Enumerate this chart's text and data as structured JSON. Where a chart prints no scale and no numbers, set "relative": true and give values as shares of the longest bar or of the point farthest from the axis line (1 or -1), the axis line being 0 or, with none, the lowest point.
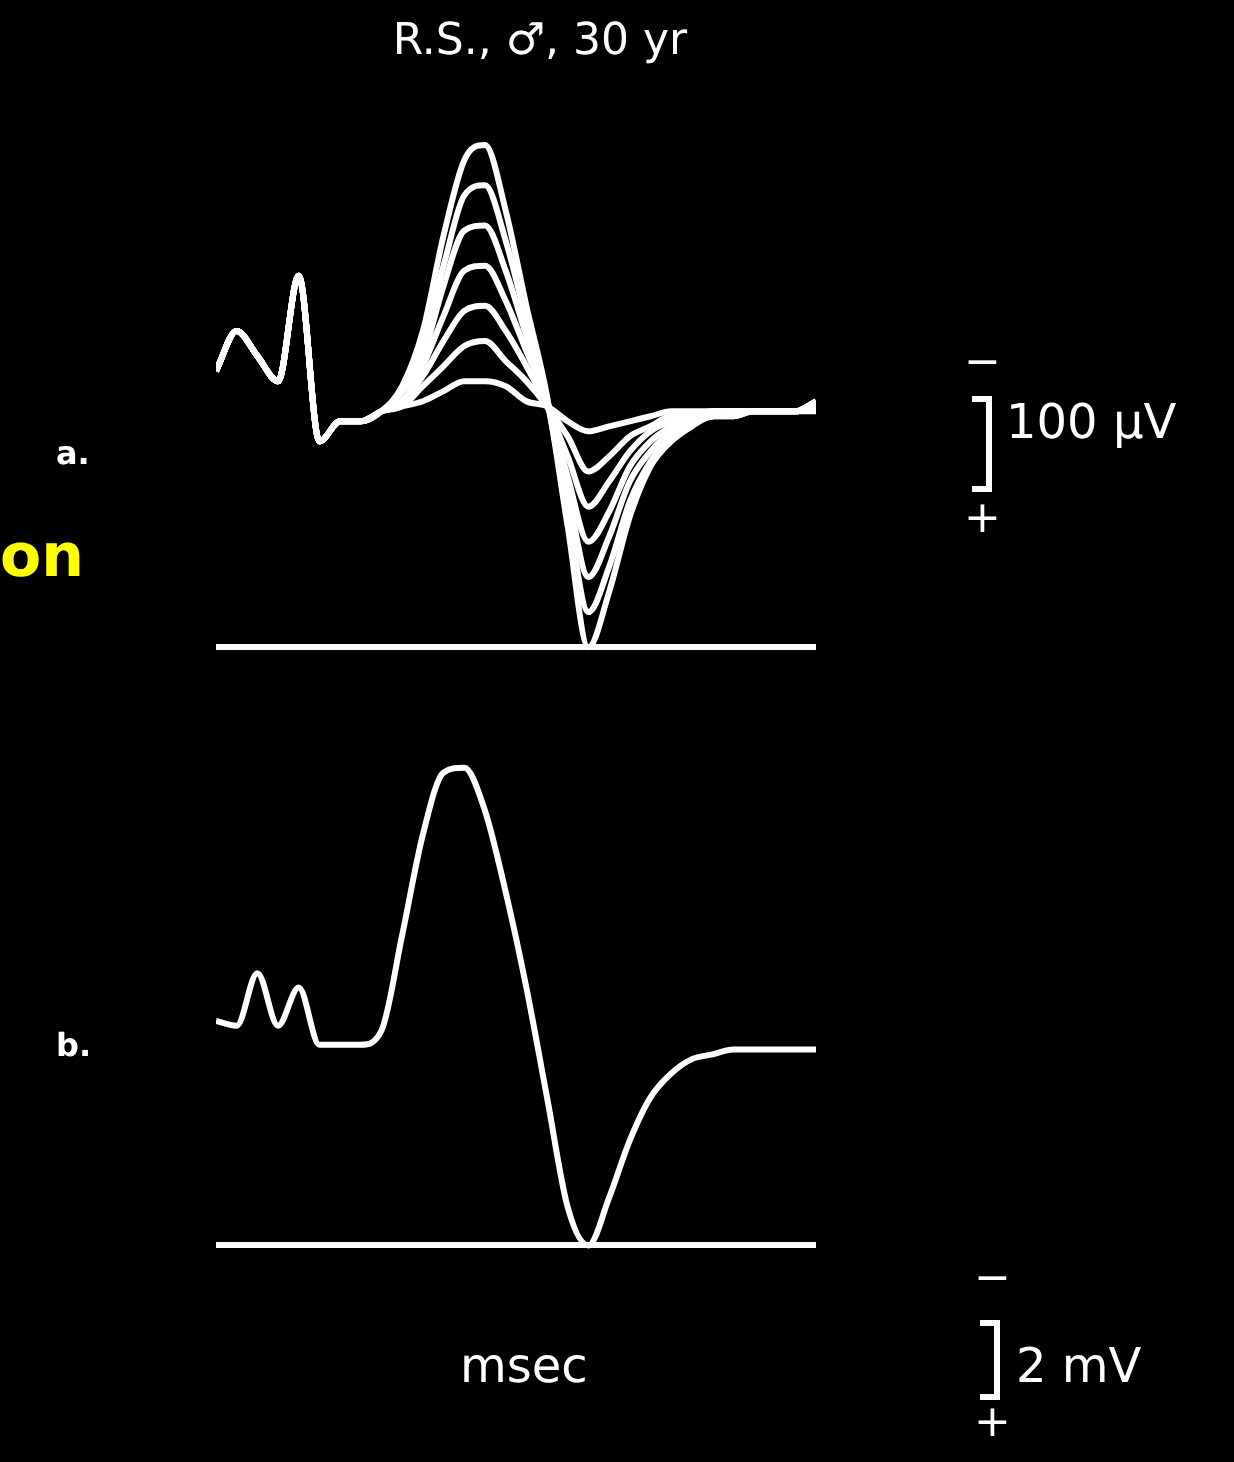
{
  "chart_data": [
    {
      "type": "line",
      "title": "R.S., ♂, 30 yr",
      "relative": true,
      "legend": false,
      "marker": "none",
      "line_style": "solid",
      "annotations": [
        "a.",
        "on",
        "−",
        "100 µV",
        "+"
      ],
      "categories": [
        null,
        null,
        null,
        null,
        null,
        null,
        null,
        null,
        null,
        null,
        null,
        null,
        null,
        null,
        null,
        null,
        null,
        null,
        null,
        null,
        null,
        null,
        null,
        null,
        null,
        null,
        null,
        null,
        null,
        null
      ],
      "series": [
        {
          "color": "#ffffff",
          "values": [
            0.55,
            0.63,
            0.58,
            0.53,
            0.74,
            0.41,
            0.45,
            0.45,
            0.47,
            0.52,
            0.63,
            0.82,
            0.97,
            1,
            0.87,
            0.68,
            0.5,
            0.24,
            0,
            0.11,
            0.26,
            0.36,
            0.41,
            0.44,
            0.46,
            0.46,
            0.47,
            0.47,
            0.47,
            0.49
          ]
        },
        {
          "color": "#ffffff",
          "values": [
            0.55,
            0.63,
            0.58,
            0.53,
            0.74,
            0.41,
            0.45,
            0.45,
            0.47,
            0.51,
            0.61,
            0.76,
            0.9,
            0.92,
            0.81,
            0.65,
            0.49,
            0.27,
            0.07,
            0.16,
            0.29,
            0.37,
            0.42,
            0.45,
            0.46,
            0.46,
            0.47,
            0.47,
            0.47,
            0.49
          ]
        },
        {
          "color": "#ffffff",
          "values": [
            0.55,
            0.63,
            0.58,
            0.53,
            0.74,
            0.41,
            0.45,
            0.45,
            0.47,
            0.51,
            0.58,
            0.72,
            0.83,
            0.84,
            0.75,
            0.62,
            0.49,
            0.31,
            0.14,
            0.22,
            0.33,
            0.39,
            0.43,
            0.45,
            0.46,
            0.47,
            0.47,
            0.47,
            0.47,
            0.48
          ]
        },
        {
          "color": "#ffffff",
          "values": [
            0.55,
            0.63,
            0.58,
            0.53,
            0.74,
            0.41,
            0.45,
            0.45,
            0.47,
            0.49,
            0.56,
            0.66,
            0.75,
            0.76,
            0.69,
            0.59,
            0.49,
            0.34,
            0.21,
            0.27,
            0.36,
            0.41,
            0.44,
            0.46,
            0.46,
            0.47,
            0.47,
            0.47,
            0.47,
            0.48
          ]
        },
        {
          "color": "#ffffff",
          "values": [
            0.55,
            0.63,
            0.58,
            0.53,
            0.74,
            0.41,
            0.45,
            0.45,
            0.47,
            0.49,
            0.54,
            0.61,
            0.67,
            0.68,
            0.63,
            0.56,
            0.48,
            0.38,
            0.28,
            0.33,
            0.39,
            0.43,
            0.45,
            0.46,
            0.47,
            0.47,
            0.47,
            0.47,
            0.47,
            0.48
          ]
        },
        {
          "color": "#ffffff",
          "values": [
            0.55,
            0.63,
            0.58,
            0.53,
            0.74,
            0.41,
            0.45,
            0.45,
            0.47,
            0.48,
            0.52,
            0.56,
            0.6,
            0.61,
            0.57,
            0.53,
            0.48,
            0.42,
            0.35,
            0.38,
            0.42,
            0.44,
            0.46,
            0.46,
            0.47,
            0.47,
            0.47,
            0.47,
            0.47,
            0.48
          ]
        },
        {
          "color": "#ffffff",
          "values": [
            0.55,
            0.63,
            0.58,
            0.53,
            0.74,
            0.41,
            0.45,
            0.45,
            0.47,
            0.48,
            0.49,
            0.51,
            0.53,
            0.53,
            0.52,
            0.49,
            0.48,
            0.45,
            0.43,
            0.44,
            0.45,
            0.46,
            0.47,
            0.47,
            0.47,
            0.47,
            0.47,
            0.47,
            0.47,
            0.47
          ]
        }
      ]
    },
    {
      "type": "line",
      "relative": true,
      "legend": false,
      "marker": "none",
      "line_style": "solid",
      "annotations": [
        "b.",
        "msec",
        "−",
        "2 mV",
        "+"
      ],
      "categories": [
        null,
        null,
        null,
        null,
        null,
        null,
        null,
        null,
        null,
        null,
        null,
        null,
        null,
        null,
        null,
        null,
        null,
        null,
        null,
        null,
        null,
        null,
        null,
        null,
        null,
        null,
        null,
        null,
        null,
        null
      ],
      "series": [
        {
          "color": "#ffffff",
          "values": [
            0.47,
            0.46,
            0.57,
            0.46,
            0.54,
            0.42,
            0.42,
            0.42,
            0.45,
            0.65,
            0.86,
            0.99,
            1,
            0.91,
            0.74,
            0.54,
            0.31,
            0.08,
            0,
            0.1,
            0.22,
            0.31,
            0.36,
            0.39,
            0.4,
            0.41,
            0.41,
            0.41,
            0.41,
            0.41
          ]
        }
      ]
    }
  ]
}
